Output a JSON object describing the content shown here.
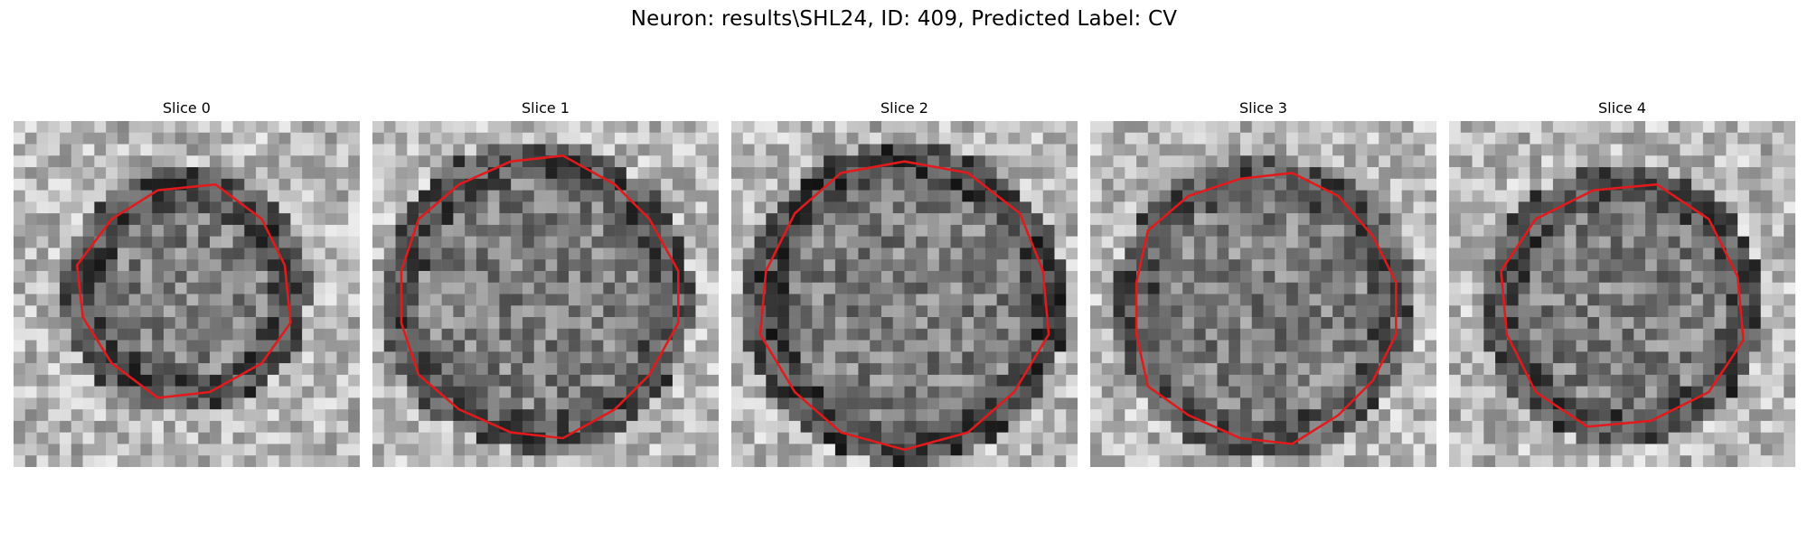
{
  "figure": {
    "title": "Neuron: results\\SHL24, ID: 409, Predicted Label: CV"
  },
  "panels": [
    {
      "title": "Slice 0"
    },
    {
      "title": "Slice 1"
    },
    {
      "title": "Slice 2"
    },
    {
      "title": "Slice 3"
    },
    {
      "title": "Slice 4"
    }
  ],
  "colors": {
    "contour": "#e31a1c",
    "background": "#ffffff"
  },
  "image": {
    "colormap": "grayscale",
    "grid_size": 30
  }
}
